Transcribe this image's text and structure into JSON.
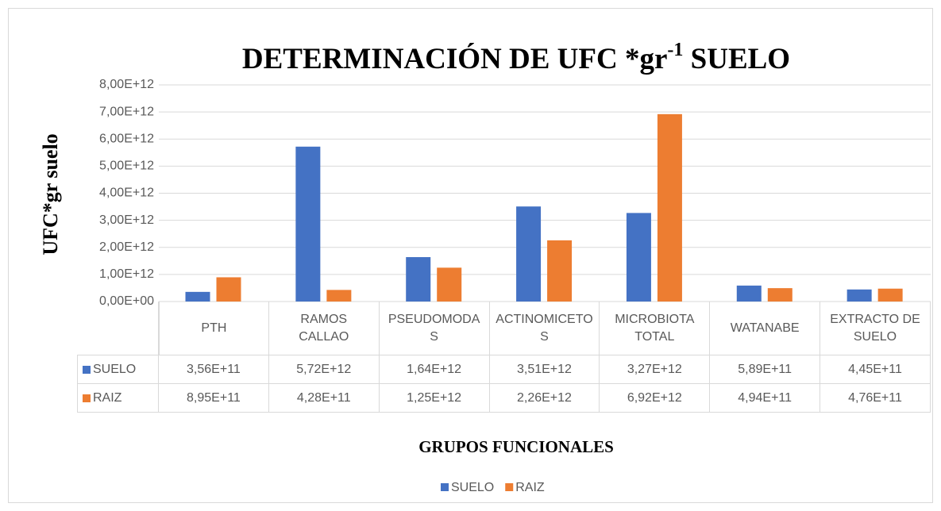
{
  "chart_data": {
    "type": "bar",
    "title": [
      "DETERMINACIÓN  DE UFC *gr",
      "-1",
      " SUELO"
    ],
    "ylabel": "UFC*gr suelo",
    "xlabel": "GRUPOS FUNCIONALES",
    "categories": [
      "PTH",
      "RAMOS CALLAO",
      "PSEUDOMODAS",
      "ACTINOMICETOS",
      "MICROBIOTA TOTAL",
      "WATANABE",
      "EXTRACTO DE SUELO"
    ],
    "series": [
      {
        "name": "SUELO",
        "color": "#4472c4",
        "values": [
          356000000000,
          5720000000000,
          1640000000000,
          3510000000000,
          3270000000000,
          589000000000,
          445000000000
        ],
        "value_labels": [
          "3,56E+11",
          "5,72E+12",
          "1,64E+12",
          "3,51E+12",
          "3,27E+12",
          "5,89E+11",
          "4,45E+11"
        ]
      },
      {
        "name": "RAIZ",
        "color": "#ed7d31",
        "values": [
          895000000000,
          428000000000,
          1250000000000,
          2260000000000,
          6920000000000,
          494000000000,
          476000000000
        ],
        "value_labels": [
          "8,95E+11",
          "4,28E+11",
          "1,25E+12",
          "2,26E+12",
          "6,92E+12",
          "4,94E+11",
          "4,76E+11"
        ]
      }
    ],
    "ylim": [
      0,
      8000000000000
    ],
    "yticks": [
      {
        "value": 0,
        "label": "0,00E+00"
      },
      {
        "value": 1000000000000,
        "label": "1,00E+12"
      },
      {
        "value": 2000000000000,
        "label": "2,00E+12"
      },
      {
        "value": 3000000000000,
        "label": "3,00E+12"
      },
      {
        "value": 4000000000000,
        "label": "4,00E+12"
      },
      {
        "value": 5000000000000,
        "label": "5,00E+12"
      },
      {
        "value": 6000000000000,
        "label": "6,00E+12"
      },
      {
        "value": 7000000000000,
        "label": "7,00E+12"
      },
      {
        "value": 8000000000000,
        "label": "8,00E+12"
      }
    ],
    "grid": true,
    "legend": "bottom"
  }
}
